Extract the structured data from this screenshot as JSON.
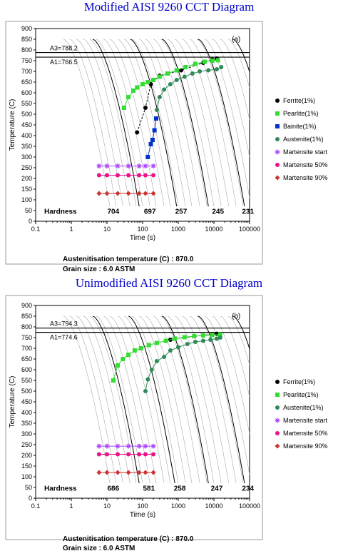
{
  "chart_data": [
    {
      "type": "scatter",
      "title": "Modified AISI 9260 CCT Diagram",
      "panel_label": "(a)",
      "xlabel": "Time (s)",
      "ylabel": "Temperature (C)",
      "xscale": "log",
      "xlim": [
        0.1,
        100000
      ],
      "ylim": [
        0,
        900
      ],
      "xticks": [
        "0.1",
        "1",
        "10",
        "100",
        "1000",
        "10000",
        "100000"
      ],
      "yticks": [
        "0",
        "50",
        "100",
        "150",
        "200",
        "250",
        "300",
        "350",
        "400",
        "450",
        "500",
        "550",
        "600",
        "650",
        "700",
        "750",
        "800",
        "850",
        "900"
      ],
      "A3_label": "A3=788.2",
      "A3": 788.2,
      "A1_label": "A1=766.5",
      "A1": 766.5,
      "hardness_label": "Hardness",
      "hardness": [
        {
          "value": "704",
          "x": 15
        },
        {
          "value": "697",
          "x": 160
        },
        {
          "value": "257",
          "x": 1200
        },
        {
          "value": "245",
          "x": 13000
        },
        {
          "value": "231",
          "x": 90000
        }
      ],
      "austenitisation": "Austenitisation temperature (C) : 870.0",
      "grain_size": "Grain size : 6.0 ASTM",
      "cooling_curves_t0": [
        0.6,
        0.9,
        1.4,
        2.2,
        3.3,
        5,
        8,
        12,
        20,
        30,
        50,
        80,
        120,
        200,
        320,
        500,
        800,
        1300,
        2100,
        3300,
        5500,
        9000,
        15000,
        25000
      ],
      "heavy_curves_t0": [
        4,
        45,
        350,
        3600,
        34000
      ],
      "series": [
        {
          "name": "Ferrite(1%)",
          "color": "#000000",
          "marker": "circle",
          "line": "dashed",
          "x": [
            70,
            120,
            170,
            300,
            1200,
            5000,
            9000,
            12000
          ],
          "y": [
            415,
            530,
            640,
            680,
            705,
            740,
            755,
            760
          ]
        },
        {
          "name": "Pearlite(1%)",
          "color": "#33dd33",
          "marker": "square",
          "line": "solid",
          "x": [
            30,
            40,
            55,
            70,
            100,
            140,
            200,
            300,
            500,
            900,
            1600,
            3000,
            5500,
            9000,
            13000
          ],
          "y": [
            530,
            580,
            610,
            625,
            640,
            650,
            660,
            675,
            690,
            705,
            720,
            735,
            745,
            750,
            752
          ]
        },
        {
          "name": "Bainite(1%)",
          "color": "#0033cc",
          "marker": "square",
          "line": "solid",
          "x": [
            140,
            170,
            190,
            215,
            240
          ],
          "y": [
            300,
            360,
            380,
            425,
            480
          ]
        },
        {
          "name": "Austenite(1%)",
          "color": "#2e8b57",
          "marker": "circle",
          "line": "solid",
          "x": [
            250,
            300,
            400,
            600,
            900,
            1500,
            2500,
            4000,
            7000,
            12000,
            16000
          ],
          "y": [
            520,
            580,
            615,
            640,
            660,
            675,
            690,
            700,
            705,
            710,
            720
          ]
        },
        {
          "name": "Martensite start",
          "color": "#aa44ff",
          "marker": "star",
          "line": "solid",
          "x": [
            6,
            10,
            20,
            40,
            80,
            120,
            200
          ],
          "y": [
            258,
            258,
            258,
            258,
            258,
            258,
            258
          ]
        },
        {
          "name": "Martensite 50%",
          "color": "#ee1188",
          "marker": "circle",
          "line": "solid",
          "x": [
            6,
            10,
            20,
            40,
            80,
            120,
            200
          ],
          "y": [
            215,
            215,
            215,
            215,
            215,
            215,
            215
          ]
        },
        {
          "name": "Martensite 90%",
          "color": "#cc3333",
          "marker": "diamond",
          "line": "solid",
          "x": [
            6,
            10,
            20,
            40,
            80,
            120,
            200
          ],
          "y": [
            130,
            130,
            130,
            130,
            130,
            130,
            130
          ]
        }
      ],
      "legend_position": "right"
    },
    {
      "type": "scatter",
      "title": "Unimodified AISI 9260 CCT Diagram",
      "panel_label": "(b)",
      "xlabel": "Time (s)",
      "ylabel": "Temperature (C)",
      "xscale": "log",
      "xlim": [
        0.1,
        100000
      ],
      "ylim": [
        0,
        900
      ],
      "xticks": [
        "0.1",
        "1",
        "10",
        "100",
        "1000",
        "10000",
        "100000"
      ],
      "yticks": [
        "0",
        "50",
        "100",
        "150",
        "200",
        "250",
        "300",
        "350",
        "400",
        "450",
        "500",
        "550",
        "600",
        "650",
        "700",
        "750",
        "800",
        "850",
        "900"
      ],
      "A3_label": "A3=794.3",
      "A3": 794.3,
      "A1_label": "A1=774.6",
      "A1": 774.6,
      "hardness_label": "Hardness",
      "hardness": [
        {
          "value": "686",
          "x": 15
        },
        {
          "value": "581",
          "x": 150
        },
        {
          "value": "258",
          "x": 1100
        },
        {
          "value": "247",
          "x": 12000
        },
        {
          "value": "234",
          "x": 90000
        }
      ],
      "austenitisation": "Austenitisation temperature (C) : 870.0",
      "grain_size": "Grain size : 6.0 ASTM",
      "cooling_curves_t0": [
        0.6,
        0.9,
        1.4,
        2.2,
        3.3,
        5,
        8,
        12,
        20,
        30,
        50,
        80,
        120,
        200,
        320,
        500,
        800,
        1300,
        2100,
        3300,
        5500,
        9000,
        15000,
        25000
      ],
      "heavy_curves_t0": [
        4,
        40,
        350,
        3600,
        34000
      ],
      "series": [
        {
          "name": "Ferrite(1%)",
          "color": "#000000",
          "marker": "circle",
          "line": "dashed",
          "x": [
            600,
            800,
            12000
          ],
          "y": [
            740,
            745,
            768
          ]
        },
        {
          "name": "Pearlite(1%)",
          "color": "#33dd33",
          "marker": "square",
          "line": "solid",
          "x": [
            15,
            20,
            28,
            40,
            60,
            90,
            150,
            250,
            450,
            800,
            1500,
            2800,
            5000,
            9000,
            15000
          ],
          "y": [
            550,
            620,
            650,
            670,
            690,
            700,
            715,
            725,
            735,
            745,
            752,
            757,
            760,
            762,
            765
          ]
        },
        {
          "name": "Austenite(1%)",
          "color": "#2e8b57",
          "marker": "circle",
          "line": "solid",
          "x": [
            120,
            140,
            180,
            250,
            400,
            600,
            1000,
            1800,
            3000,
            5000,
            8000,
            12000,
            15000
          ],
          "y": [
            500,
            555,
            600,
            640,
            660,
            690,
            705,
            720,
            730,
            735,
            740,
            745,
            750
          ]
        },
        {
          "name": "Martensite start",
          "color": "#aa44ff",
          "marker": "star",
          "line": "solid",
          "x": [
            6,
            10,
            20,
            40,
            80,
            120,
            200
          ],
          "y": [
            243,
            243,
            243,
            243,
            243,
            243,
            243
          ]
        },
        {
          "name": "Martensite 50%",
          "color": "#ee1188",
          "marker": "circle",
          "line": "solid",
          "x": [
            6,
            10,
            20,
            40,
            80,
            120,
            200
          ],
          "y": [
            205,
            205,
            205,
            205,
            205,
            205,
            205
          ]
        },
        {
          "name": "Martensite 90%",
          "color": "#cc3333",
          "marker": "diamond",
          "line": "solid",
          "x": [
            6,
            10,
            20,
            40,
            80,
            120,
            200
          ],
          "y": [
            120,
            120,
            120,
            120,
            120,
            120,
            120
          ]
        }
      ],
      "legend_position": "right"
    }
  ]
}
